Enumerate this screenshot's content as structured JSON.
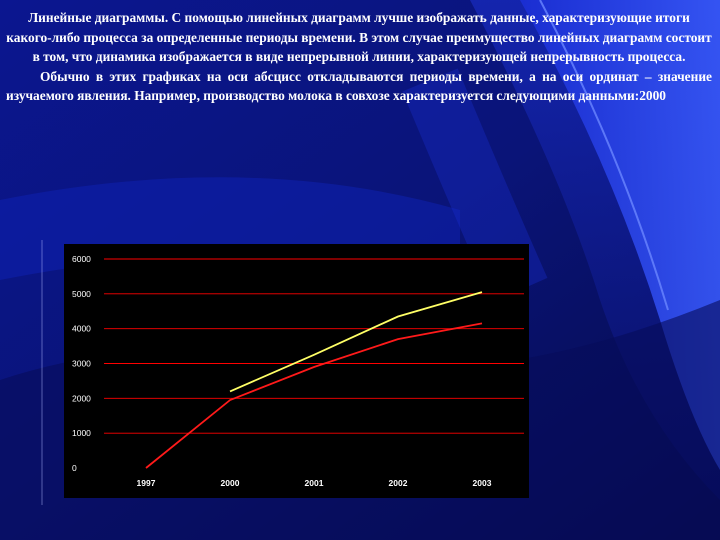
{
  "text": {
    "para1": "Линейные диаграммы. С помощью линейных диаграмм лучше изображать данные, характеризующие итоги какого-либо процесса за определенные периоды времени. В этом случае преимущество линейных диаграмм состоит в том, что динамика изображается в виде непрерывной линии, характеризующей непрерывность процесса.",
    "para2": "Обычно в этих графиках на оси абсцисс откладываются периоды времени, а на оси ординат – значение изучаемого явления. Например, производство молока в совхозе характеризуется следующими данными:2000"
  },
  "colors": {
    "background": "#0a0f6e",
    "accent_blue": "#2a49ff",
    "grid": "#ff0000",
    "series_yellow": "#ffff66",
    "series_red": "#ff1a1a"
  },
  "chart_data": {
    "type": "line",
    "title": "",
    "xlabel": "",
    "ylabel": "",
    "categories": [
      "1997",
      "2000",
      "2001",
      "2002",
      "2003"
    ],
    "ylim": [
      0,
      6000
    ],
    "yticks": [
      0,
      1000,
      2000,
      3000,
      4000,
      5000,
      6000
    ],
    "grid": true,
    "legend": "none",
    "series": [
      {
        "color": "#ffff66",
        "values": [
          null,
          2200,
          3250,
          4350,
          5050
        ]
      },
      {
        "color": "#ff1a1a",
        "values": [
          0,
          1950,
          2900,
          3700,
          4150
        ]
      }
    ]
  }
}
